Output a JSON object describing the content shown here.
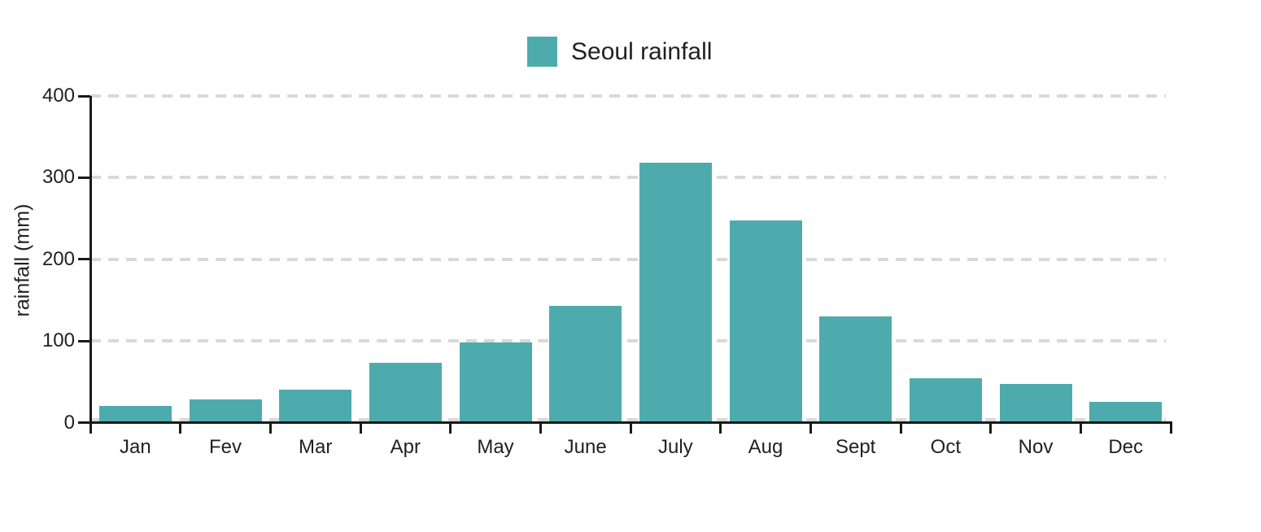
{
  "chart_data": {
    "type": "bar",
    "categories": [
      "Jan",
      "Fev",
      "Mar",
      "Apr",
      "May",
      "June",
      "July",
      "Aug",
      "Sept",
      "Oct",
      "Nov",
      "Dec"
    ],
    "series": [
      {
        "name": "Seoul rainfall",
        "values": [
          20,
          28,
          40,
          73,
          98,
          143,
          318,
          248,
          130,
          54,
          47,
          25
        ]
      }
    ],
    "title": "",
    "xlabel": "",
    "ylabel": "rainfall (mm)",
    "ylim": [
      0,
      400
    ],
    "yticks": [
      0,
      100,
      200,
      300,
      400
    ],
    "grid": "horizontal dashed gridlines at each y tick",
    "legend_position": "top-center",
    "colors": {
      "bar": "#4EABAD",
      "axis": "#1a1a1a",
      "gridline": "#d9d9d9",
      "text": "#212121",
      "background": "#ffffff"
    }
  },
  "legend": {
    "label": "Seoul rainfall"
  }
}
